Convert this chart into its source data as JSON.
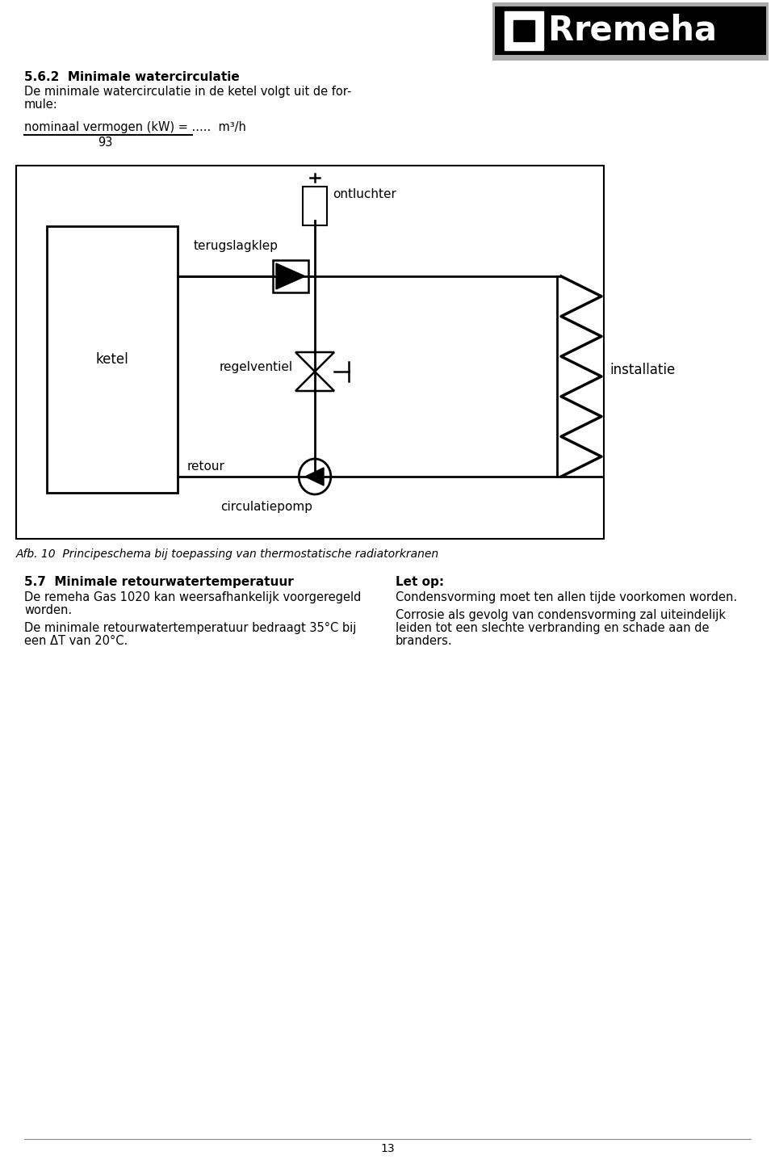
{
  "page_bg": "#ffffff",
  "section_title_1": "5.6.2  Minimale watercirculatie",
  "section_body_1a": "De minimale watercirculatie in de ketel volgt uit de for-",
  "section_body_1b": "mule:",
  "formula_label": "nominaal vermogen (kW) = .....  m³/h",
  "formula_denom": "93",
  "diagram_caption": "Afb. 10  Principeschema bij toepassing van thermostatische radiatorkranen",
  "diagram_label_ketel": "ketel",
  "diagram_label_terugslagklep": "terugslagklep",
  "diagram_label_ontluchter": "ontluchter",
  "diagram_label_regelventiel": "regelventiel",
  "diagram_label_installatie": "installatie",
  "diagram_label_retour": "retour",
  "diagram_label_circulatiepomp": "circulatiepomp",
  "section_title_2": "5.7  Minimale retourwatertemperatuur",
  "section_body_2a": "De remeha Gas 1020 kan weersafhankelijk voorgeregeld",
  "section_body_2b": "worden.",
  "section_body_3a": "De minimale retourwatertemperatuur bedraagt 35°C bij",
  "section_body_3b": "een ΔT van 20°C.",
  "letop_title": "Let op:",
  "letop_body_1": "Condensvorming moet ten allen tijde voorkomen worden.",
  "letop_body_2a": "Corrosie als gevolg van condensvorming zal uiteindelijk",
  "letop_body_2b": "leiden tot een slechte verbranding en schade aan de",
  "letop_body_2c": "branders.",
  "page_number": "13",
  "logo_gray": "#aaaaaa",
  "logo_black": "#000000"
}
